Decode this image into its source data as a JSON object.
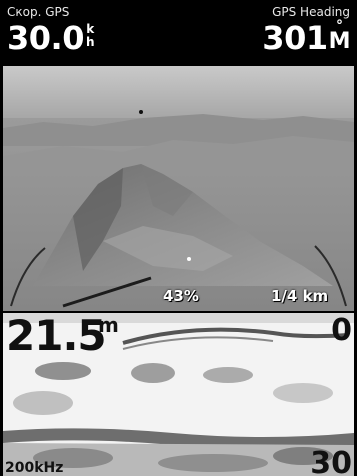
{
  "top_bar": {
    "left_field": {
      "label": "Скор. GPS",
      "value": "30.0",
      "unit_top": "k",
      "unit_bottom": "h"
    },
    "right_field": {
      "label": "GPS Heading",
      "value": "301",
      "unit_top": "°",
      "unit_bottom": "M"
    }
  },
  "perspective_view": {
    "zoom_percent": "43%",
    "range": "1/4 km"
  },
  "sonar": {
    "depth_value": "21.5",
    "depth_unit": "m",
    "scale_top": "0",
    "scale_bottom": "30",
    "frequency": "200kHz"
  },
  "colors": {
    "background": "#000000",
    "sky": "#a9a9a9",
    "terrain": "#8c8c8c",
    "sonar_background": "#f3f3f3"
  }
}
